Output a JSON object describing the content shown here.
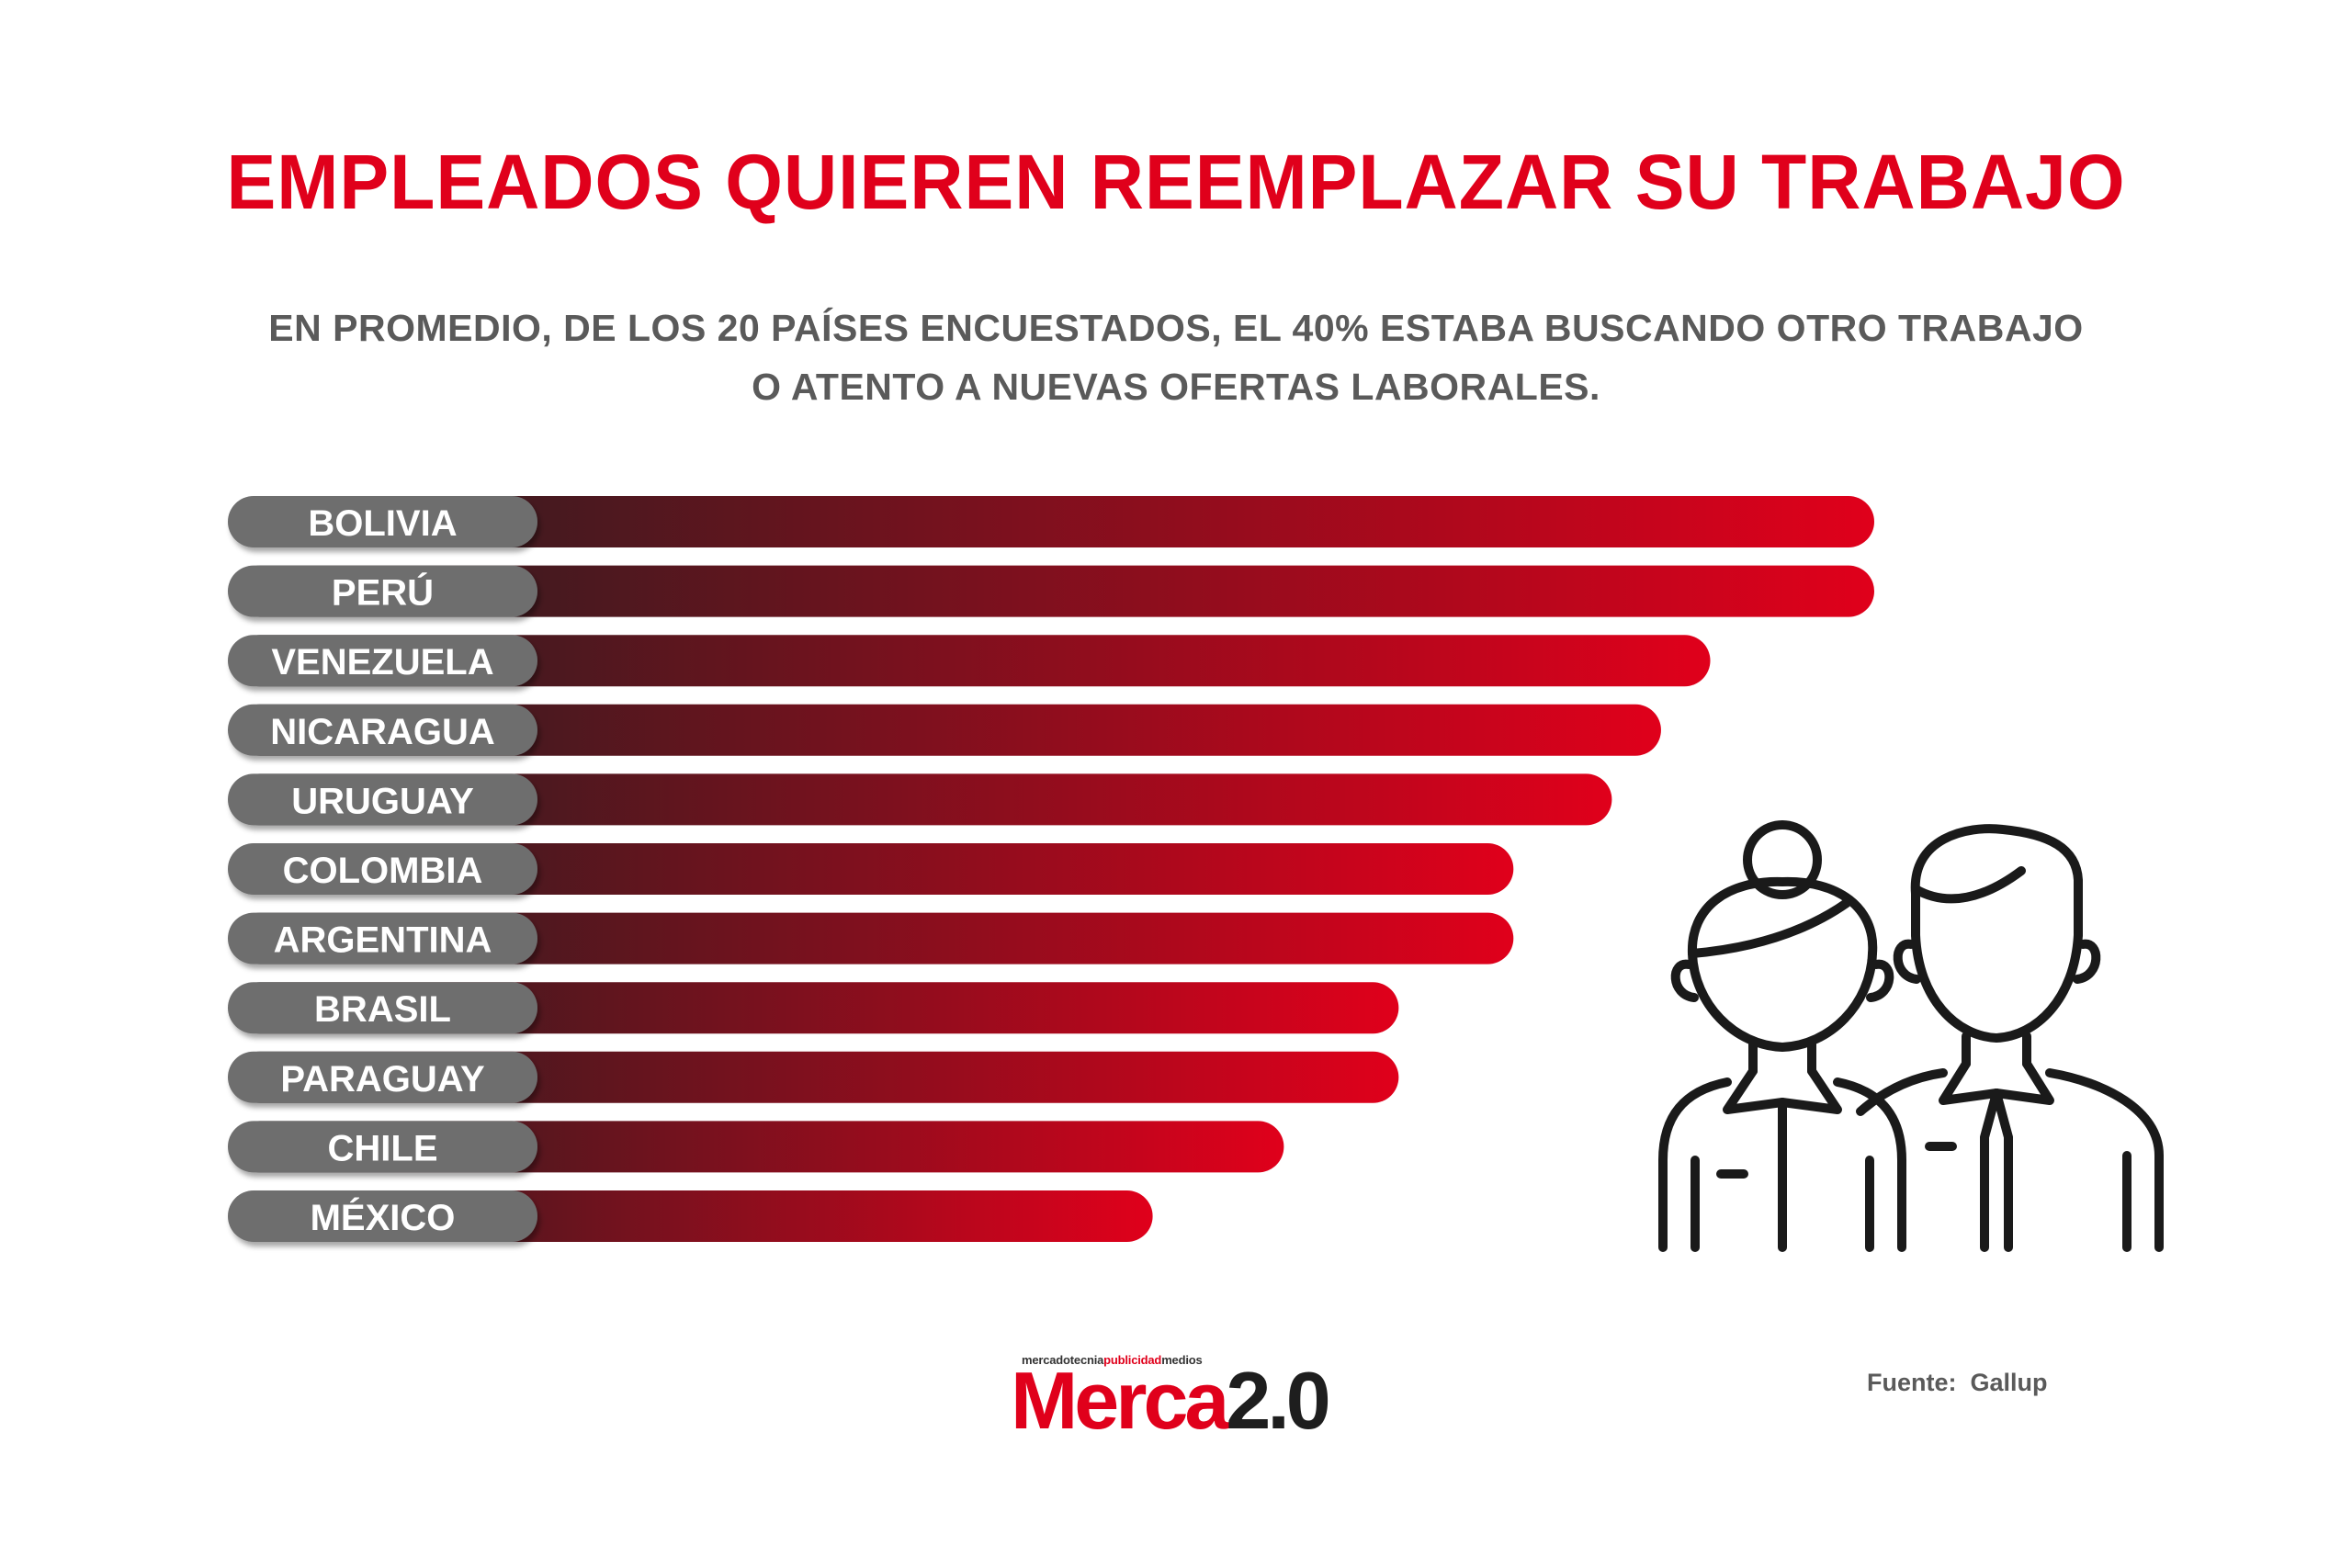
{
  "title": "EMPLEADOS QUIEREN REEMPLAZAR SU TRABAJO",
  "subtitle_line1": "EN PROMEDIO, DE LOS 20 PAÍSES ENCUESTADOS, EL 40% ESTABA BUSCANDO OTRO TRABAJO",
  "subtitle_line2": "O ATENTO A NUEVAS OFERTAS LABORALES.",
  "source_label": "Fuente:",
  "source_value": "Gallup",
  "logo": {
    "tagline_a": "mercadotecnia",
    "tagline_b": "publicidad",
    "tagline_c": "medios",
    "brand_a": "Merca",
    "brand_b": "2.0"
  },
  "colors": {
    "accent": "#e0001b",
    "bar_start": "#231f20",
    "label_pill": "#6e6e6e",
    "text_gray": "#5a5a5a"
  },
  "icons": [
    "woman-employee-icon",
    "man-employee-icon"
  ],
  "chart_data": {
    "type": "bar",
    "orientation": "horizontal",
    "categories": [
      "BOLIVIA",
      "PERÚ",
      "VENEZUELA",
      "NICARAGUA",
      "URUGUAY",
      "COLOMBIA",
      "ARGENTINA",
      "BRASIL",
      "PARAGUAY",
      "CHILE",
      "MÉXICO"
    ],
    "values": [
      100,
      100,
      90,
      87,
      84,
      78,
      78,
      71,
      71,
      64,
      56
    ],
    "value_unit": "relative bar length (no values printed)",
    "xlim": [
      0,
      100
    ],
    "grid": false,
    "legend": "none",
    "xlabel": "",
    "ylabel": ""
  }
}
